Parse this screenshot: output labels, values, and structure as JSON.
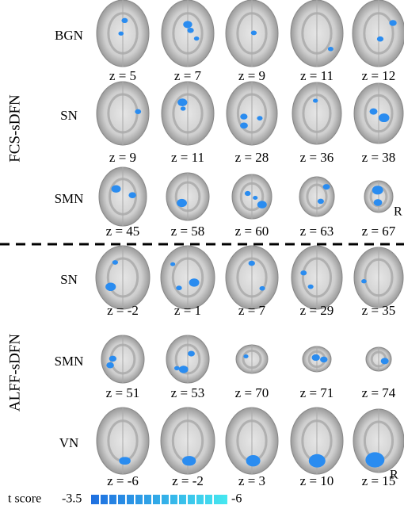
{
  "groups": [
    {
      "label": "FCS-sDFN",
      "orientation": "R",
      "rows": [
        {
          "network": "BGN",
          "slices": [
            "z = 5",
            "z = 7",
            "z = 9",
            "z = 11",
            "z = 12"
          ]
        },
        {
          "network": "SN",
          "slices": [
            "z = 9",
            "z = 11",
            "z = 28",
            "z = 36",
            "z = 38"
          ]
        },
        {
          "network": "SMN",
          "slices": [
            "z = 45",
            "z = 58",
            "z = 60",
            "z = 63",
            "z = 67"
          ]
        }
      ]
    },
    {
      "label": "ALFF-sDFN",
      "orientation": "R",
      "rows": [
        {
          "network": "SN",
          "slices": [
            "z = -2",
            "z = 1",
            "z = 7",
            "z = 29",
            "z = 35"
          ]
        },
        {
          "network": "SMN",
          "slices": [
            "z = 51",
            "z = 53",
            "z = 70",
            "z = 71",
            "z = 74"
          ]
        },
        {
          "network": "VN",
          "slices": [
            "z = -6",
            "z = -2",
            "z = 3",
            "z = 10",
            "z = 15"
          ]
        }
      ]
    }
  ],
  "legend": {
    "title": "t score",
    "min_label": "-3.5",
    "max_label": "-6"
  }
}
